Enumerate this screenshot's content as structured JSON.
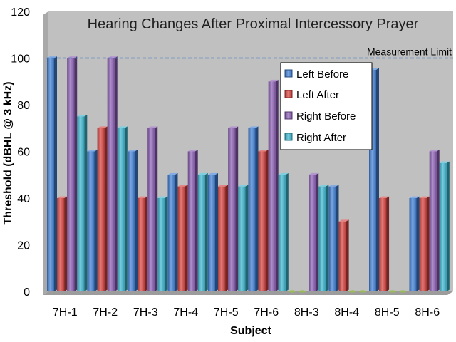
{
  "chart_data": {
    "type": "bar",
    "title": "Hearing Changes After Proximal Intercessory Prayer",
    "xlabel": "Subject",
    "ylabel": "Threshold (dBHL @ 3 kHz)",
    "ylim": [
      0,
      120
    ],
    "yticks": [
      0,
      20,
      40,
      60,
      80,
      100,
      120
    ],
    "grid": false,
    "legend_position": "upper-right",
    "categories": [
      "7H-1",
      "7H-2",
      "7H-3",
      "7H-4",
      "7H-5",
      "7H-6",
      "8H-3",
      "8H-4",
      "8H-5",
      "8H-6"
    ],
    "series": [
      {
        "name": "Left Before",
        "color": "#3F7FD4",
        "values": [
          100,
          60,
          60,
          50,
          50,
          70,
          0,
          45,
          95,
          40
        ]
      },
      {
        "name": "Left After",
        "color": "#D6423E",
        "values": [
          40,
          70,
          40,
          45,
          45,
          60,
          0,
          30,
          40,
          40
        ]
      },
      {
        "name": "Right Before",
        "color": "#8B5DB4",
        "values": [
          100,
          100,
          70,
          60,
          70,
          90,
          50,
          0,
          0,
          60
        ]
      },
      {
        "name": "Right After",
        "color": "#3BB5CE",
        "values": [
          75,
          70,
          40,
          50,
          45,
          50,
          45,
          0,
          0,
          55
        ]
      }
    ],
    "annotations": [
      {
        "text": "Measurement Limit",
        "y": 100,
        "style": "dashed",
        "color": "#4A7CC2"
      }
    ],
    "background_color": "#C0C0C0"
  }
}
